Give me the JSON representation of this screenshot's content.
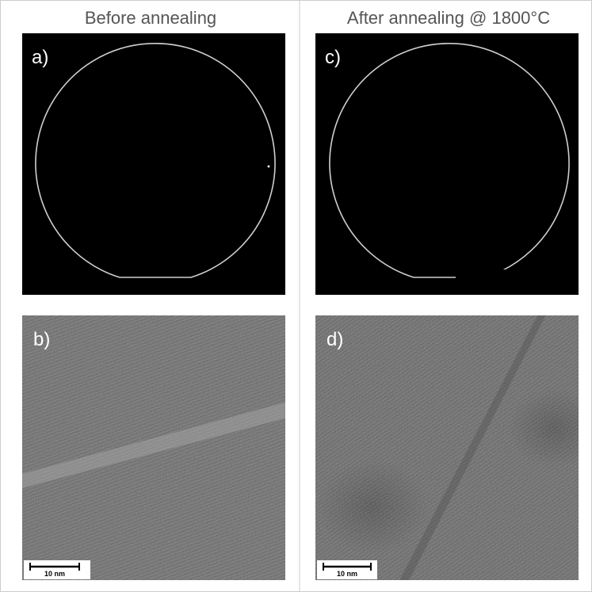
{
  "headers": [
    "Before annealing",
    "After annealing @ 1800°C"
  ],
  "panels": [
    {
      "label": "a)"
    },
    {
      "label": "b)",
      "scale_bar": "10 nm"
    },
    {
      "label": "c)"
    },
    {
      "label": "d)",
      "scale_bar": "10 nm"
    }
  ]
}
